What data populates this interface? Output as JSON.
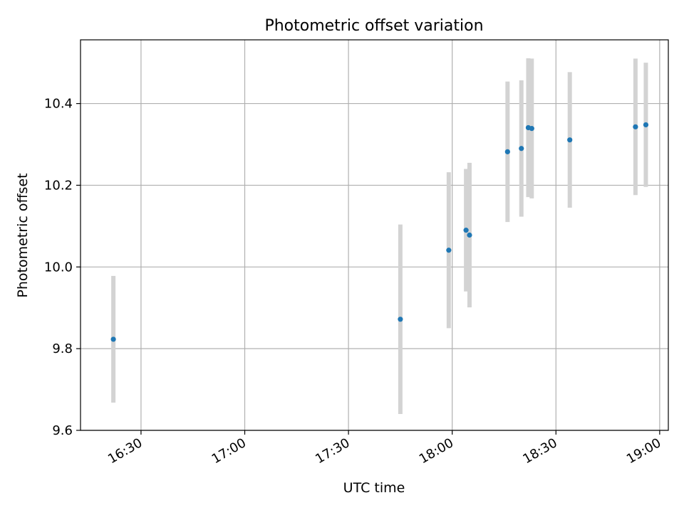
{
  "chart_data": {
    "type": "scatter",
    "title": "Photometric offset variation",
    "xlabel": "UTC time",
    "ylabel": "Photometric offset",
    "x_ticks": [
      "16:30",
      "17:00",
      "17:30",
      "18:00",
      "18:30",
      "19:00"
    ],
    "y_ticks": [
      "9.6",
      "9.8",
      "10.0",
      "10.2",
      "10.4"
    ],
    "xlim": [
      "16:12:30",
      "19:02:30"
    ],
    "ylim": [
      9.6,
      10.556
    ],
    "grid": true,
    "series": [
      {
        "points": [
          {
            "x": "16:22",
            "y": 9.823,
            "err": 0.155
          },
          {
            "x": "17:45",
            "y": 9.872,
            "err": 0.232
          },
          {
            "x": "17:59",
            "y": 10.041,
            "err": 0.191
          },
          {
            "x": "18:04",
            "y": 10.09,
            "err": 0.15
          },
          {
            "x": "18:05",
            "y": 10.078,
            "err": 0.177
          },
          {
            "x": "18:16",
            "y": 10.282,
            "err": 0.172
          },
          {
            "x": "18:20",
            "y": 10.29,
            "err": 0.167
          },
          {
            "x": "18:22",
            "y": 10.341,
            "err": 0.17
          },
          {
            "x": "18:23",
            "y": 10.339,
            "err": 0.171
          },
          {
            "x": "18:34",
            "y": 10.311,
            "err": 0.166
          },
          {
            "x": "18:53",
            "y": 10.343,
            "err": 0.167
          },
          {
            "x": "18:56",
            "y": 10.348,
            "err": 0.152
          }
        ]
      }
    ],
    "colors": {
      "point": "#1f77b4",
      "errorbar": "#d3d3d3",
      "grid": "#b0b0b0",
      "axes": "#000000"
    }
  }
}
